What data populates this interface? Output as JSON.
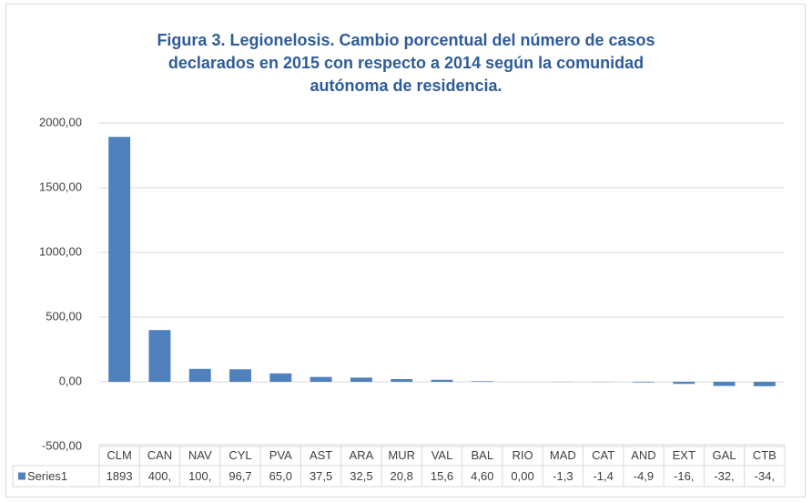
{
  "chart_data": {
    "type": "bar",
    "title": [
      "Figura 3. Legionelosis. Cambio porcentual del número de casos",
      "declarados en 2015 con respecto a 2014 según la comunidad",
      "autónoma de residencia."
    ],
    "categories": [
      "CLM",
      "CAN",
      "NAV",
      "CYL",
      "PVA",
      "AST",
      "ARA",
      "MUR",
      "VAL",
      "BAL",
      "RIO",
      "MAD",
      "CAT",
      "AND",
      "EXT",
      "GAL",
      "CTB"
    ],
    "series": [
      {
        "name": "Series1",
        "color": "#4f81bd",
        "values": [
          1893,
          400,
          100,
          96.7,
          65.0,
          37.5,
          32.5,
          20.8,
          15.6,
          4.6,
          0.0,
          -1.3,
          -1.4,
          -4.9,
          -16,
          -32,
          -34
        ],
        "value_labels": [
          "1893",
          "400,",
          "100,",
          "96,7",
          "65,0",
          "37,5",
          "32,5",
          "20,8",
          "15,6",
          "4,60",
          "0,00",
          "-1,3",
          "-1,4",
          "-4,9",
          "-16,",
          "-32,",
          "-34,"
        ]
      }
    ],
    "ylim": [
      -500,
      2000
    ],
    "yticks": [
      {
        "value": -500,
        "label": "-500,00"
      },
      {
        "value": 0,
        "label": "0,00"
      },
      {
        "value": 500,
        "label": "500,00"
      },
      {
        "value": 1000,
        "label": "1000,00"
      },
      {
        "value": 1500,
        "label": "1500,00"
      },
      {
        "value": 2000,
        "label": "2000,00"
      }
    ],
    "grid": true
  }
}
